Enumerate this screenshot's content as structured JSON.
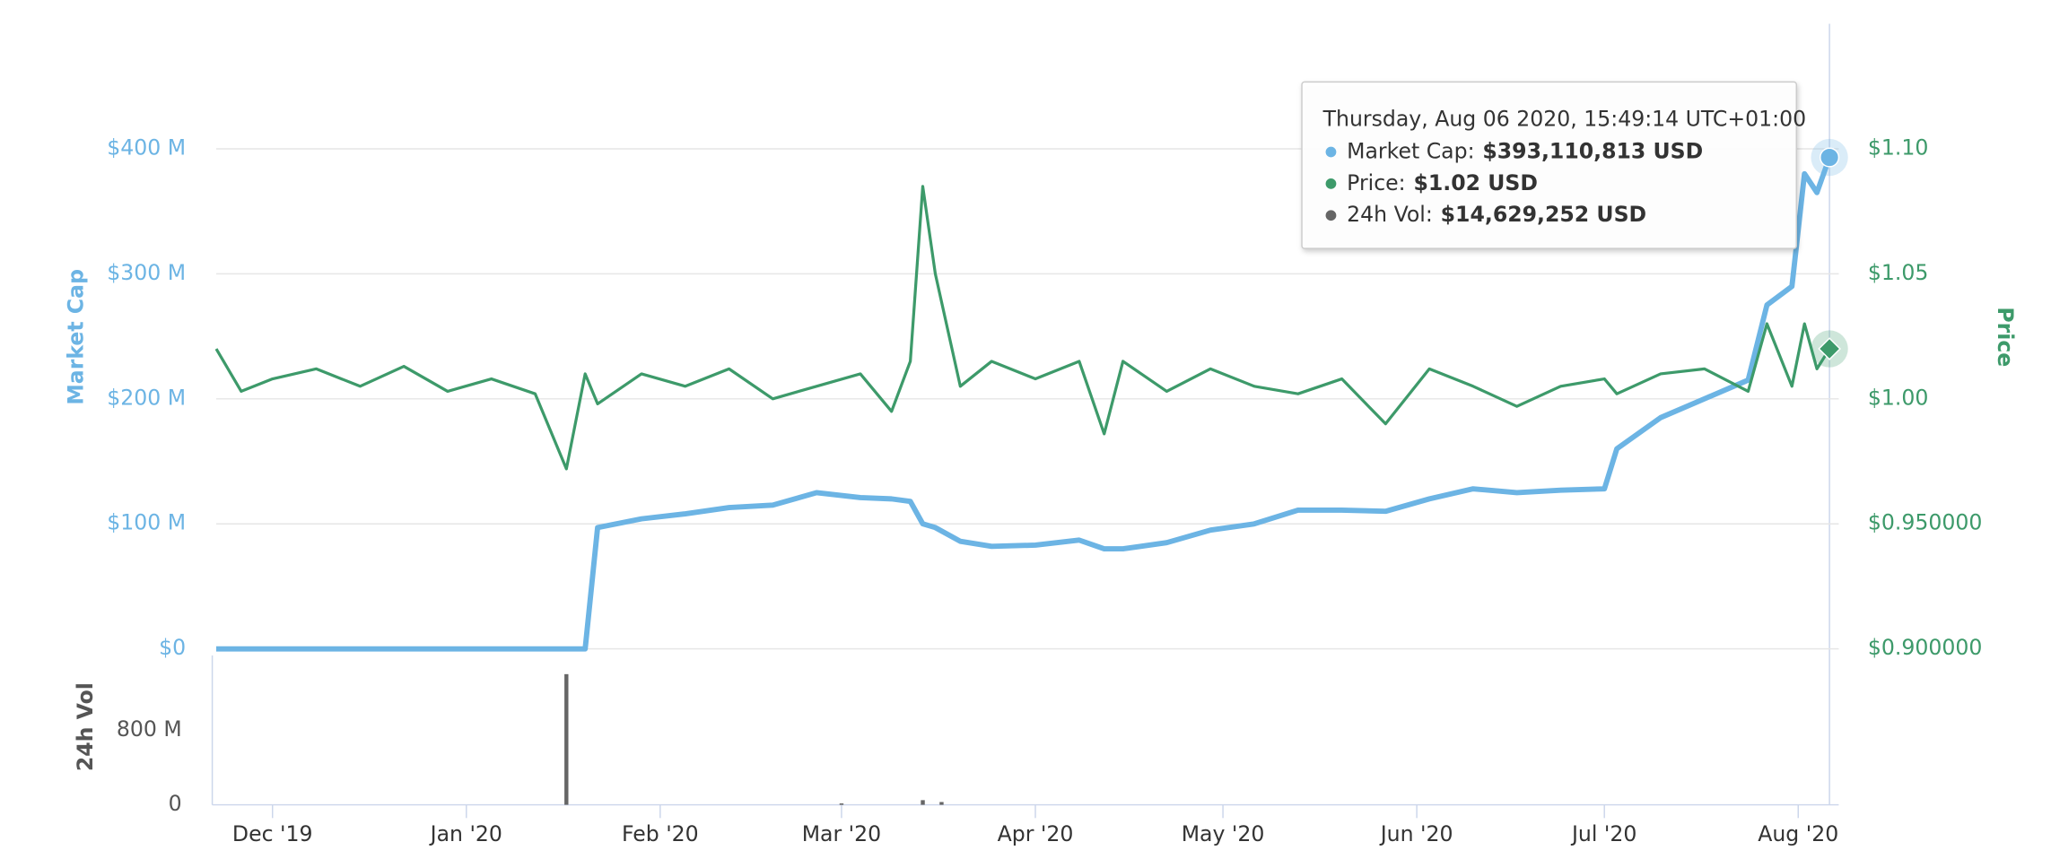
{
  "chart_data": [
    {
      "type": "line",
      "x": [
        "2019-11-22",
        "2019-11-26",
        "2019-12-01",
        "2019-12-08",
        "2019-12-15",
        "2019-12-22",
        "2019-12-29",
        "2020-01-05",
        "2020-01-12",
        "2020-01-17",
        "2020-01-20",
        "2020-01-22",
        "2020-01-29",
        "2020-02-05",
        "2020-02-12",
        "2020-02-19",
        "2020-02-26",
        "2020-03-04",
        "2020-03-09",
        "2020-03-12",
        "2020-03-14",
        "2020-03-16",
        "2020-03-20",
        "2020-03-25",
        "2020-04-01",
        "2020-04-08",
        "2020-04-12",
        "2020-04-15",
        "2020-04-22",
        "2020-04-29",
        "2020-05-06",
        "2020-05-13",
        "2020-05-20",
        "2020-05-27",
        "2020-06-03",
        "2020-06-10",
        "2020-06-17",
        "2020-06-24",
        "2020-07-01",
        "2020-07-03",
        "2020-07-10",
        "2020-07-17",
        "2020-07-24",
        "2020-07-27",
        "2020-07-31",
        "2020-08-02",
        "2020-08-04",
        "2020-08-06"
      ],
      "xlim": [
        "2019-11-22",
        "2020-08-06"
      ],
      "series": [
        {
          "name": "Market Cap",
          "color": "#6cb4e4",
          "values": [
            0,
            0,
            0,
            0,
            0,
            0,
            0,
            0,
            0,
            0,
            0,
            97000000,
            104000000,
            108000000,
            113000000,
            115000000,
            125000000,
            121000000,
            120000000,
            118000000,
            100000000,
            97000000,
            86000000,
            82000000,
            83000000,
            87000000,
            80000000,
            80000000,
            85000000,
            95000000,
            100000000,
            111000000,
            111000000,
            110000000,
            120000000,
            128000000,
            125000000,
            127000000,
            128000000,
            160000000,
            185000000,
            200000000,
            215000000,
            275000000,
            290000000,
            380000000,
            365000000,
            393110813
          ]
        },
        {
          "name": "Price",
          "color": "#3d9a6a",
          "axis": "y2",
          "values": [
            1.02,
            1.003,
            1.008,
            1.012,
            1.005,
            1.013,
            1.003,
            1.008,
            1.002,
            0.972,
            1.01,
            0.998,
            1.01,
            1.005,
            1.012,
            1.0,
            1.005,
            1.01,
            0.995,
            1.015,
            1.085,
            1.05,
            1.005,
            1.015,
            1.008,
            1.015,
            0.986,
            1.015,
            1.003,
            1.012,
            1.005,
            1.002,
            1.008,
            0.99,
            1.012,
            1.005,
            0.997,
            1.005,
            1.008,
            1.002,
            1.01,
            1.012,
            1.003,
            1.03,
            1.005,
            1.03,
            1.012,
            1.02
          ]
        }
      ],
      "ylabel": "Market Cap",
      "y2label": "Price",
      "ylim": [
        0,
        500000000
      ],
      "yticks": [
        {
          "value": 0,
          "label": "$0"
        },
        {
          "value": 100000000,
          "label": "$100 M"
        },
        {
          "value": 200000000,
          "label": "$200 M"
        },
        {
          "value": 300000000,
          "label": "$300 M"
        },
        {
          "value": 400000000,
          "label": "$400 M"
        }
      ],
      "y2lim": [
        0.9,
        1.15
      ],
      "y2ticks": [
        {
          "value": 0.9,
          "label": "$0.900000"
        },
        {
          "value": 0.95,
          "label": "$0.950000"
        },
        {
          "value": 1.0,
          "label": "$1.00"
        },
        {
          "value": 1.05,
          "label": "$1.05"
        },
        {
          "value": 1.1,
          "label": "$1.10"
        }
      ],
      "grid": true,
      "tooltip": {
        "title": "Thursday, Aug 06 2020, 15:49:14 UTC+01:00",
        "items": [
          {
            "label": "Market Cap:",
            "value": "$393,110,813 USD"
          },
          {
            "label": "Price:",
            "value": "$1.02 USD"
          },
          {
            "label": "24h Vol:",
            "value": "$14,629,252 USD"
          }
        ]
      }
    },
    {
      "type": "bar",
      "ylabel": "24h Vol",
      "x": [
        "2020-01-17",
        "2020-03-01",
        "2020-03-14",
        "2020-03-17"
      ],
      "values": [
        1400000000,
        15000000,
        50000000,
        30000000
      ],
      "color": "#666666",
      "ylim": [
        0,
        1600000000
      ],
      "yticks": [
        0,
        {
          "value": 800000000,
          "label": "800 M"
        }
      ],
      "xlim": [
        "2019-11-22",
        "2020-08-06"
      ],
      "xticks": [
        {
          "value": "2019-12-01",
          "label": "Dec '19"
        },
        {
          "value": "2020-01-01",
          "label": "Jan '20"
        },
        {
          "value": "2020-02-01",
          "label": "Feb '20"
        },
        {
          "value": "2020-03-01",
          "label": "Mar '20"
        },
        {
          "value": "2020-04-01",
          "label": "Apr '20"
        },
        {
          "value": "2020-05-01",
          "label": "May '20"
        },
        {
          "value": "2020-06-01",
          "label": "Jun '20"
        },
        {
          "value": "2020-07-01",
          "label": "Jul '20"
        },
        {
          "value": "2020-08-01",
          "label": "Aug '20"
        }
      ]
    }
  ]
}
